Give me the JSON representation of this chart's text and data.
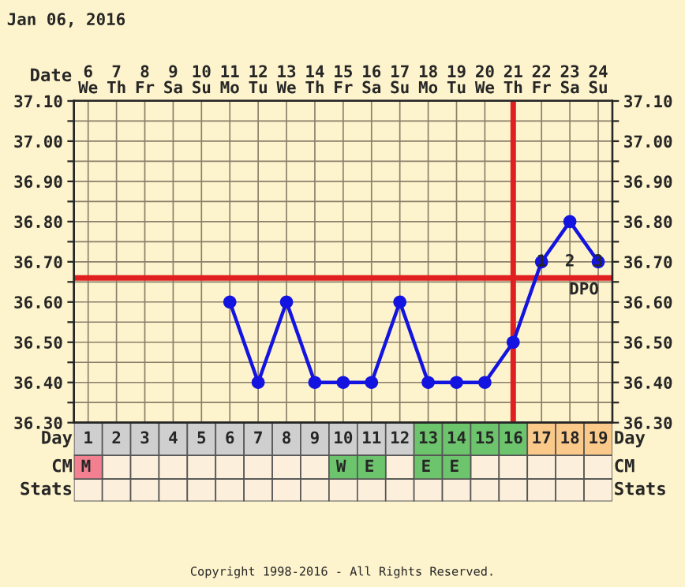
{
  "chart_data": {
    "type": "line",
    "title": "Jan 06, 2016",
    "x": [
      6,
      7,
      8,
      9,
      10,
      11,
      12,
      13,
      14,
      15,
      16,
      17,
      18,
      19
    ],
    "series": [
      {
        "color": "#1414e0",
        "values": [
          36.6,
          36.4,
          36.6,
          36.4,
          36.4,
          36.4,
          36.6,
          36.4,
          36.4,
          36.4,
          36.5,
          36.7,
          36.8,
          36.7
        ]
      }
    ],
    "marker": "circle",
    "line_style": "solid",
    "grid": true,
    "legend": false,
    "xlim": [
      0.5,
      19.5
    ],
    "xticks": [
      1,
      2,
      3,
      4,
      5,
      6,
      7,
      8,
      9,
      10,
      11,
      12,
      13,
      14,
      15,
      16,
      17,
      18,
      19
    ],
    "x2lim": [
      5.5,
      24.5
    ],
    "x2ticks": [
      {
        "value": 6,
        "label": "6\nWe"
      },
      {
        "value": 7,
        "label": "7\nTh"
      },
      {
        "value": 8,
        "label": "8\nFr"
      },
      {
        "value": 9,
        "label": "9\nSa"
      },
      {
        "value": 10,
        "label": "10\nSu"
      },
      {
        "value": 11,
        "label": "11\nMo"
      },
      {
        "value": 12,
        "label": "12\nTu"
      },
      {
        "value": 13,
        "label": "13\nWe"
      },
      {
        "value": 14,
        "label": "14\nTh"
      },
      {
        "value": 15,
        "label": "15\nFr"
      },
      {
        "value": 16,
        "label": "16\nSa"
      },
      {
        "value": 17,
        "label": "17\nSu"
      },
      {
        "value": 18,
        "label": "18\nMo"
      },
      {
        "value": 19,
        "label": "19\nTu"
      },
      {
        "value": 20,
        "label": "20\nWe"
      },
      {
        "value": 21,
        "label": "21\nTh"
      },
      {
        "value": 22,
        "label": "22\nFr"
      },
      {
        "value": 23,
        "label": "23\nSa"
      },
      {
        "value": 24,
        "label": "24\nSu"
      }
    ],
    "ylim": [
      36.3,
      37.1
    ],
    "yticks": [
      {
        "value": 36.3,
        "label": "36.30"
      },
      {
        "value": 36.35,
        "label": null
      },
      {
        "value": 36.4,
        "label": "36.40"
      },
      {
        "value": 36.45,
        "label": null
      },
      {
        "value": 36.5,
        "label": "36.50"
      },
      {
        "value": 36.55,
        "label": null
      },
      {
        "value": 36.6,
        "label": "36.60"
      },
      {
        "value": 36.65,
        "label": null
      },
      {
        "value": 36.7,
        "label": "36.70"
      },
      {
        "value": 36.75,
        "label": null
      },
      {
        "value": 36.8,
        "label": "36.80"
      },
      {
        "value": 36.85,
        "label": null
      },
      {
        "value": 36.9,
        "label": "36.90"
      },
      {
        "value": 36.95,
        "label": null
      },
      {
        "value": 37.0,
        "label": "37.00"
      },
      {
        "value": 37.05,
        "label": null
      },
      {
        "value": 37.1,
        "label": "37.10"
      }
    ],
    "y2lim": [
      36.3,
      37.1
    ],
    "y2ticks": [
      {
        "value": 36.3,
        "label": "36.30"
      },
      {
        "value": 36.35,
        "label": null
      },
      {
        "value": 36.4,
        "label": "36.40"
      },
      {
        "value": 36.45,
        "label": null
      },
      {
        "value": 36.5,
        "label": "36.50"
      },
      {
        "value": 36.55,
        "label": null
      },
      {
        "value": 36.6,
        "label": "36.60"
      },
      {
        "value": 36.65,
        "label": null
      },
      {
        "value": 36.7,
        "label": "36.70"
      },
      {
        "value": 36.75,
        "label": null
      },
      {
        "value": 36.8,
        "label": "36.80"
      },
      {
        "value": 36.85,
        "label": null
      },
      {
        "value": 36.9,
        "label": "36.90"
      },
      {
        "value": 36.95,
        "label": null
      },
      {
        "value": 37.0,
        "label": "37.00"
      },
      {
        "value": 37.05,
        "label": null
      },
      {
        "value": 37.1,
        "label": "37.10"
      }
    ],
    "ref_lines": [
      {
        "axis": "y",
        "value": 36.66,
        "color": "#e02020"
      },
      {
        "axis": "x",
        "value": 16,
        "color": "#e02020"
      }
    ],
    "annotations": [
      "Date",
      "Day",
      "CM",
      "Stats",
      "Copyright 1998-2016 - All Rights Reserved.",
      "1",
      "2",
      "3",
      "DPO",
      "M",
      "W",
      "E",
      "E",
      "E"
    ]
  }
}
